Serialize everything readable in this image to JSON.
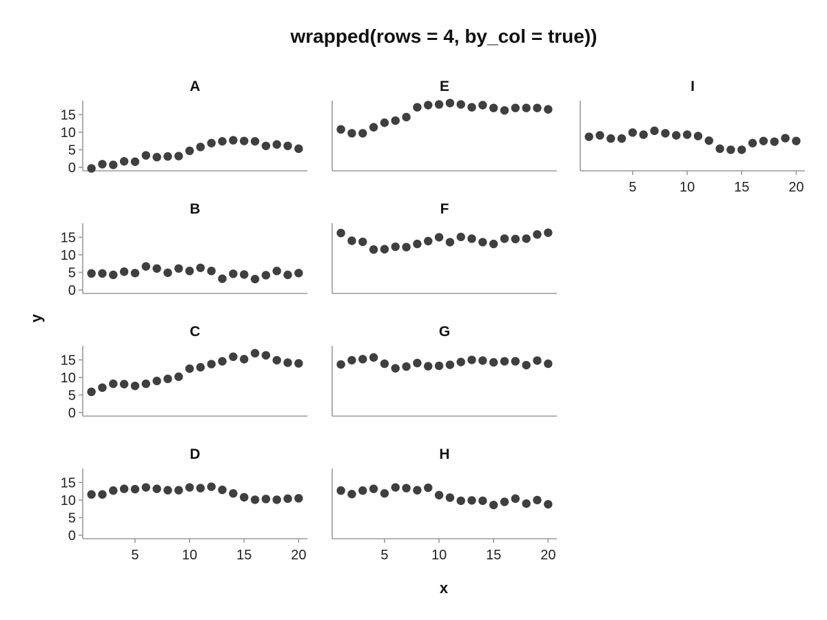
{
  "chart_data": {
    "type": "scatter",
    "title": "wrapped(rows = 4, by_col = true))",
    "xlabel": "x",
    "ylabel": "y",
    "xlim": [
      0.2,
      20.8
    ],
    "ylim": [
      -1,
      19
    ],
    "x_ticks": [
      5,
      10,
      15,
      20
    ],
    "y_ticks": [
      0,
      5,
      10,
      15
    ],
    "grid": false,
    "point_color": "#3f3f3f",
    "facets": [
      {
        "label": "A",
        "x": [
          1,
          2,
          3,
          4,
          5,
          6,
          7,
          8,
          9,
          10,
          11,
          12,
          13,
          14,
          15,
          16,
          17,
          18,
          19,
          20
        ],
        "y": [
          -0.3,
          0.9,
          0.7,
          1.7,
          1.6,
          3.4,
          2.9,
          3.1,
          3.2,
          4.7,
          5.8,
          6.9,
          7.4,
          7.7,
          7.5,
          7.4,
          6.1,
          6.5,
          6.1,
          5.3
        ]
      },
      {
        "label": "B",
        "x": [
          1,
          2,
          3,
          4,
          5,
          6,
          7,
          8,
          9,
          10,
          11,
          12,
          13,
          14,
          15,
          16,
          17,
          18,
          19,
          20
        ],
        "y": [
          4.7,
          4.7,
          4.3,
          5.2,
          4.8,
          6.7,
          6.1,
          4.9,
          6.1,
          5.4,
          6.3,
          5.4,
          3.2,
          4.6,
          4.4,
          3.1,
          4.2,
          5.4,
          4.3,
          4.8
        ]
      },
      {
        "label": "C",
        "x": [
          1,
          2,
          3,
          4,
          5,
          6,
          7,
          8,
          9,
          10,
          11,
          12,
          13,
          14,
          15,
          16,
          17,
          18,
          19,
          20
        ],
        "y": [
          5.9,
          7.1,
          8.2,
          8.1,
          7.6,
          8.2,
          9.0,
          9.6,
          10.2,
          12.5,
          12.9,
          13.8,
          14.6,
          15.9,
          15.2,
          16.9,
          16.3,
          14.9,
          14.2,
          14.0
        ]
      },
      {
        "label": "D",
        "x": [
          1,
          2,
          3,
          4,
          5,
          6,
          7,
          8,
          9,
          10,
          11,
          12,
          13,
          14,
          15,
          16,
          17,
          18,
          19,
          20
        ],
        "y": [
          11.6,
          11.6,
          12.7,
          13.2,
          13.1,
          13.6,
          13.2,
          12.8,
          12.8,
          13.6,
          13.4,
          13.8,
          12.9,
          11.9,
          10.8,
          10.1,
          10.3,
          10.1,
          10.4,
          10.5
        ]
      },
      {
        "label": "E",
        "x": [
          1,
          2,
          3,
          4,
          5,
          6,
          7,
          8,
          9,
          10,
          11,
          12,
          13,
          14,
          15,
          16,
          17,
          18,
          19,
          20
        ],
        "y": [
          10.8,
          9.7,
          9.7,
          11.4,
          12.7,
          13.3,
          14.3,
          17.1,
          17.7,
          17.9,
          18.3,
          17.9,
          17.1,
          17.7,
          16.9,
          16.2,
          16.9,
          16.9,
          16.9,
          16.5
        ]
      },
      {
        "label": "F",
        "x": [
          1,
          2,
          3,
          4,
          5,
          6,
          7,
          8,
          9,
          10,
          11,
          12,
          13,
          14,
          15,
          16,
          17,
          18,
          19,
          20
        ],
        "y": [
          16.2,
          14.0,
          13.7,
          11.5,
          11.6,
          12.3,
          12.2,
          13.1,
          13.9,
          15.0,
          13.6,
          15.1,
          14.6,
          13.6,
          13.1,
          14.6,
          14.5,
          14.6,
          15.8,
          16.3
        ]
      },
      {
        "label": "G",
        "x": [
          1,
          2,
          3,
          4,
          5,
          6,
          7,
          8,
          9,
          10,
          11,
          12,
          13,
          14,
          15,
          16,
          17,
          18,
          19,
          20
        ],
        "y": [
          13.7,
          14.9,
          15.2,
          15.7,
          13.9,
          12.6,
          13.1,
          14.1,
          13.2,
          13.3,
          13.6,
          14.4,
          15.0,
          14.8,
          14.3,
          14.6,
          14.6,
          13.5,
          14.8,
          13.9
        ]
      },
      {
        "label": "H",
        "x": [
          1,
          2,
          3,
          4,
          5,
          6,
          7,
          8,
          9,
          10,
          11,
          12,
          13,
          14,
          15,
          16,
          17,
          18,
          19,
          20
        ],
        "y": [
          12.7,
          11.7,
          12.7,
          13.2,
          11.9,
          13.6,
          13.4,
          12.8,
          13.5,
          11.4,
          10.7,
          9.8,
          9.9,
          9.8,
          8.6,
          9.5,
          10.4,
          9.0,
          10.0,
          8.8
        ]
      },
      {
        "label": "I",
        "x": [
          1,
          2,
          3,
          4,
          5,
          6,
          7,
          8,
          9,
          10,
          11,
          12,
          13,
          14,
          15,
          16,
          17,
          18,
          19,
          20
        ],
        "y": [
          8.7,
          9.1,
          8.2,
          8.2,
          9.9,
          9.3,
          10.4,
          9.7,
          9.1,
          9.3,
          8.9,
          7.6,
          5.3,
          5.0,
          5.0,
          6.9,
          7.5,
          7.3,
          8.3,
          7.5
        ]
      }
    ]
  }
}
